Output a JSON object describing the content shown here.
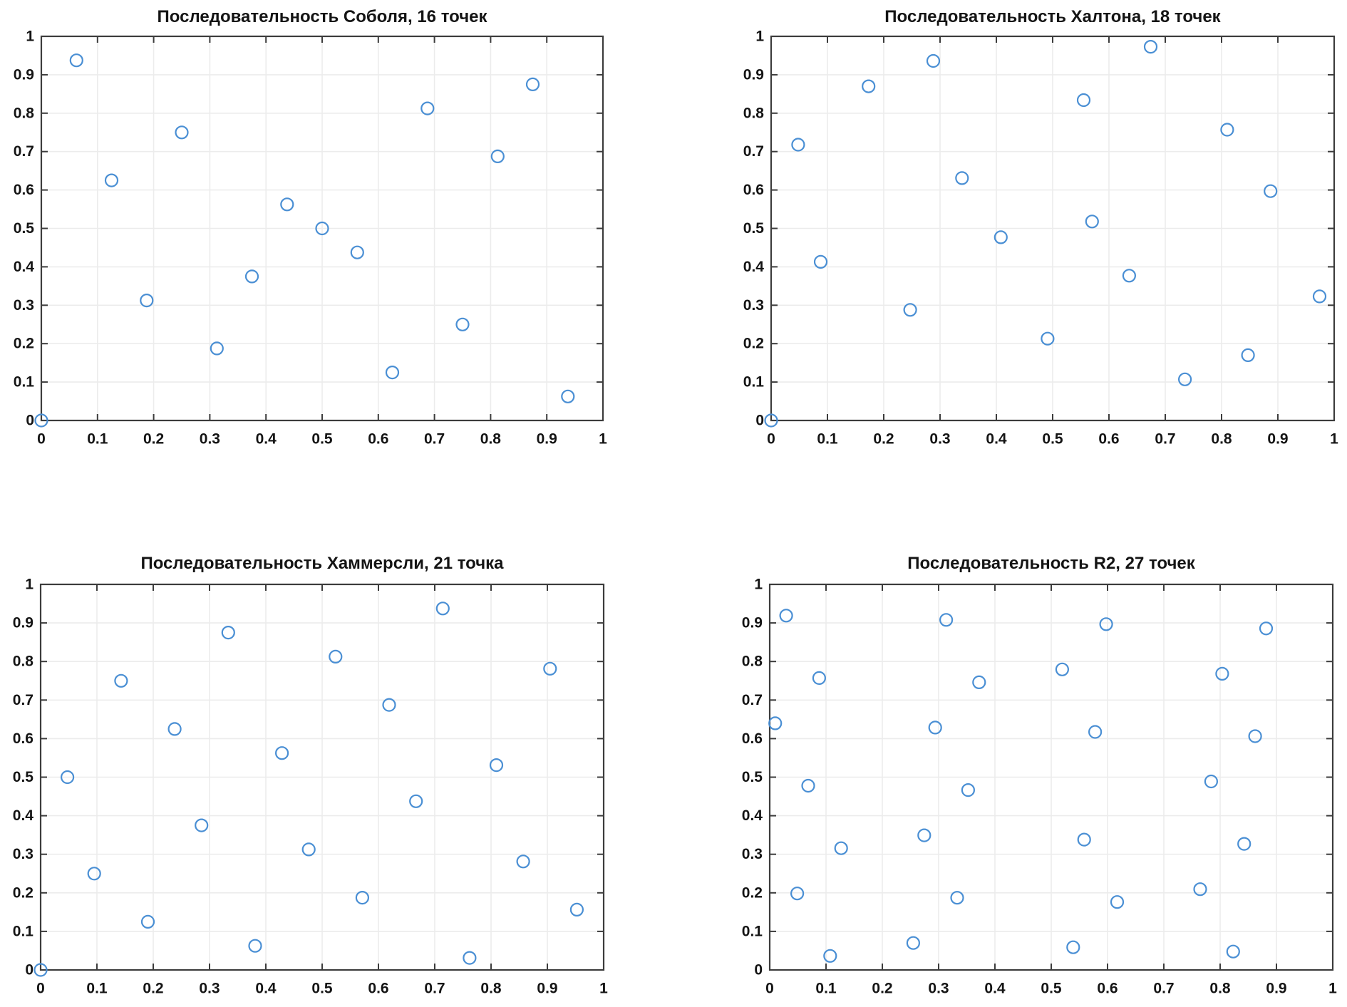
{
  "figure": {
    "background": "#ffffff",
    "text_color": "#141414",
    "axis_color": "#3c3c3c",
    "grid_color": "#ececec",
    "marker_color": "#4a8fd4"
  },
  "chart_data": [
    {
      "id": "sobol",
      "type": "scatter",
      "title": "Последовательность Соболя, 16 точек",
      "xlabel": "",
      "ylabel": "",
      "xlim": [
        0,
        1
      ],
      "ylim": [
        0,
        1
      ],
      "grid": true,
      "legend": "none",
      "xticks": [
        "0",
        "0.1",
        "0.2",
        "0.3",
        "0.4",
        "0.5",
        "0.6",
        "0.7",
        "0.8",
        "0.9",
        "1"
      ],
      "yticks": [
        "0",
        "0.1",
        "0.2",
        "0.3",
        "0.4",
        "0.5",
        "0.6",
        "0.7",
        "0.8",
        "0.9",
        "1"
      ],
      "points": [
        [
          0,
          0
        ],
        [
          0.0625,
          0.9375
        ],
        [
          0.125,
          0.625
        ],
        [
          0.1875,
          0.3125
        ],
        [
          0.25,
          0.75
        ],
        [
          0.3125,
          0.1875
        ],
        [
          0.375,
          0.375
        ],
        [
          0.4375,
          0.5625
        ],
        [
          0.5,
          0.5
        ],
        [
          0.5625,
          0.4375
        ],
        [
          0.625,
          0.125
        ],
        [
          0.6875,
          0.8125
        ],
        [
          0.75,
          0.25
        ],
        [
          0.8125,
          0.6875
        ],
        [
          0.875,
          0.875
        ],
        [
          0.9375,
          0.0625
        ]
      ]
    },
    {
      "id": "halton",
      "type": "scatter",
      "title": "Последовательность Халтона, 18 точек",
      "xlabel": "",
      "ylabel": "",
      "xlim": [
        0,
        1
      ],
      "ylim": [
        0,
        1
      ],
      "grid": true,
      "legend": "none",
      "xticks": [
        "0",
        "0.1",
        "0.2",
        "0.3",
        "0.4",
        "0.5",
        "0.6",
        "0.7",
        "0.8",
        "0.9",
        "1"
      ],
      "yticks": [
        "0",
        "0.1",
        "0.2",
        "0.3",
        "0.4",
        "0.5",
        "0.6",
        "0.7",
        "0.8",
        "0.9",
        "1"
      ],
      "points": [
        [
          0,
          0
        ],
        [
          0.048,
          0.718
        ],
        [
          0.088,
          0.413
        ],
        [
          0.173,
          0.87
        ],
        [
          0.247,
          0.288
        ],
        [
          0.288,
          0.936
        ],
        [
          0.339,
          0.631
        ],
        [
          0.408,
          0.477
        ],
        [
          0.491,
          0.213
        ],
        [
          0.555,
          0.834
        ],
        [
          0.57,
          0.518
        ],
        [
          0.636,
          0.377
        ],
        [
          0.674,
          0.973
        ],
        [
          0.735,
          0.107
        ],
        [
          0.81,
          0.757
        ],
        [
          0.847,
          0.17
        ],
        [
          0.887,
          0.597
        ],
        [
          0.974,
          0.323
        ]
      ]
    },
    {
      "id": "hammersley",
      "type": "scatter",
      "title": "Последовательность Хаммерсли, 21 точка",
      "xlabel": "",
      "ylabel": "",
      "xlim": [
        0,
        1
      ],
      "ylim": [
        0,
        1
      ],
      "grid": true,
      "legend": "none",
      "xticks": [
        "0",
        "0.1",
        "0.2",
        "0.3",
        "0.4",
        "0.5",
        "0.6",
        "0.7",
        "0.8",
        "0.9",
        "1"
      ],
      "yticks": [
        "0",
        "0.1",
        "0.2",
        "0.3",
        "0.4",
        "0.5",
        "0.6",
        "0.7",
        "0.8",
        "0.9",
        "1"
      ],
      "points": [
        [
          0,
          0
        ],
        [
          0.0476,
          0.5
        ],
        [
          0.0952,
          0.25
        ],
        [
          0.1429,
          0.75
        ],
        [
          0.1905,
          0.125
        ],
        [
          0.2381,
          0.625
        ],
        [
          0.2857,
          0.375
        ],
        [
          0.3333,
          0.875
        ],
        [
          0.381,
          0.0625
        ],
        [
          0.4286,
          0.5625
        ],
        [
          0.4762,
          0.3125
        ],
        [
          0.5238,
          0.8125
        ],
        [
          0.5714,
          0.1875
        ],
        [
          0.619,
          0.6875
        ],
        [
          0.6667,
          0.4375
        ],
        [
          0.7143,
          0.9375
        ],
        [
          0.7619,
          0.0313
        ],
        [
          0.8095,
          0.5313
        ],
        [
          0.8571,
          0.2813
        ],
        [
          0.9048,
          0.7813
        ],
        [
          0.9524,
          0.1563
        ]
      ]
    },
    {
      "id": "r2",
      "type": "scatter",
      "title": "Последовательность R2, 27 точек",
      "xlabel": "",
      "ylabel": "",
      "xlim": [
        0,
        1
      ],
      "ylim": [
        0,
        1
      ],
      "grid": true,
      "legend": "none",
      "xticks": [
        "0",
        "0.1",
        "0.2",
        "0.3",
        "0.4",
        "0.5",
        "0.6",
        "0.7",
        "0.8",
        "0.9",
        "1"
      ],
      "yticks": [
        "0",
        "0.1",
        "0.2",
        "0.3",
        "0.4",
        "0.5",
        "0.6",
        "0.7",
        "0.8",
        "0.9",
        "1"
      ],
      "points": [
        [
          0.2549,
          0.0698
        ],
        [
          0.0098,
          0.6397
        ],
        [
          0.7646,
          0.2095
        ],
        [
          0.5195,
          0.7794
        ],
        [
          0.2744,
          0.3492
        ],
        [
          0.0293,
          0.919
        ],
        [
          0.7841,
          0.4889
        ],
        [
          0.539,
          0.0587
        ],
        [
          0.2939,
          0.6286
        ],
        [
          0.0488,
          0.1984
        ],
        [
          0.8037,
          0.7682
        ],
        [
          0.5585,
          0.3381
        ],
        [
          0.3134,
          0.9079
        ],
        [
          0.0683,
          0.4778
        ],
        [
          0.8232,
          0.0476
        ],
        [
          0.578,
          0.6174
        ],
        [
          0.3329,
          0.1873
        ],
        [
          0.0878,
          0.7571
        ],
        [
          0.8427,
          0.327
        ],
        [
          0.5976,
          0.8968
        ],
        [
          0.3524,
          0.4666
        ],
        [
          0.1073,
          0.0365
        ],
        [
          0.8622,
          0.6063
        ],
        [
          0.6171,
          0.1762
        ],
        [
          0.3719,
          0.746
        ],
        [
          0.1268,
          0.3158
        ],
        [
          0.8817,
          0.8857
        ]
      ]
    }
  ]
}
